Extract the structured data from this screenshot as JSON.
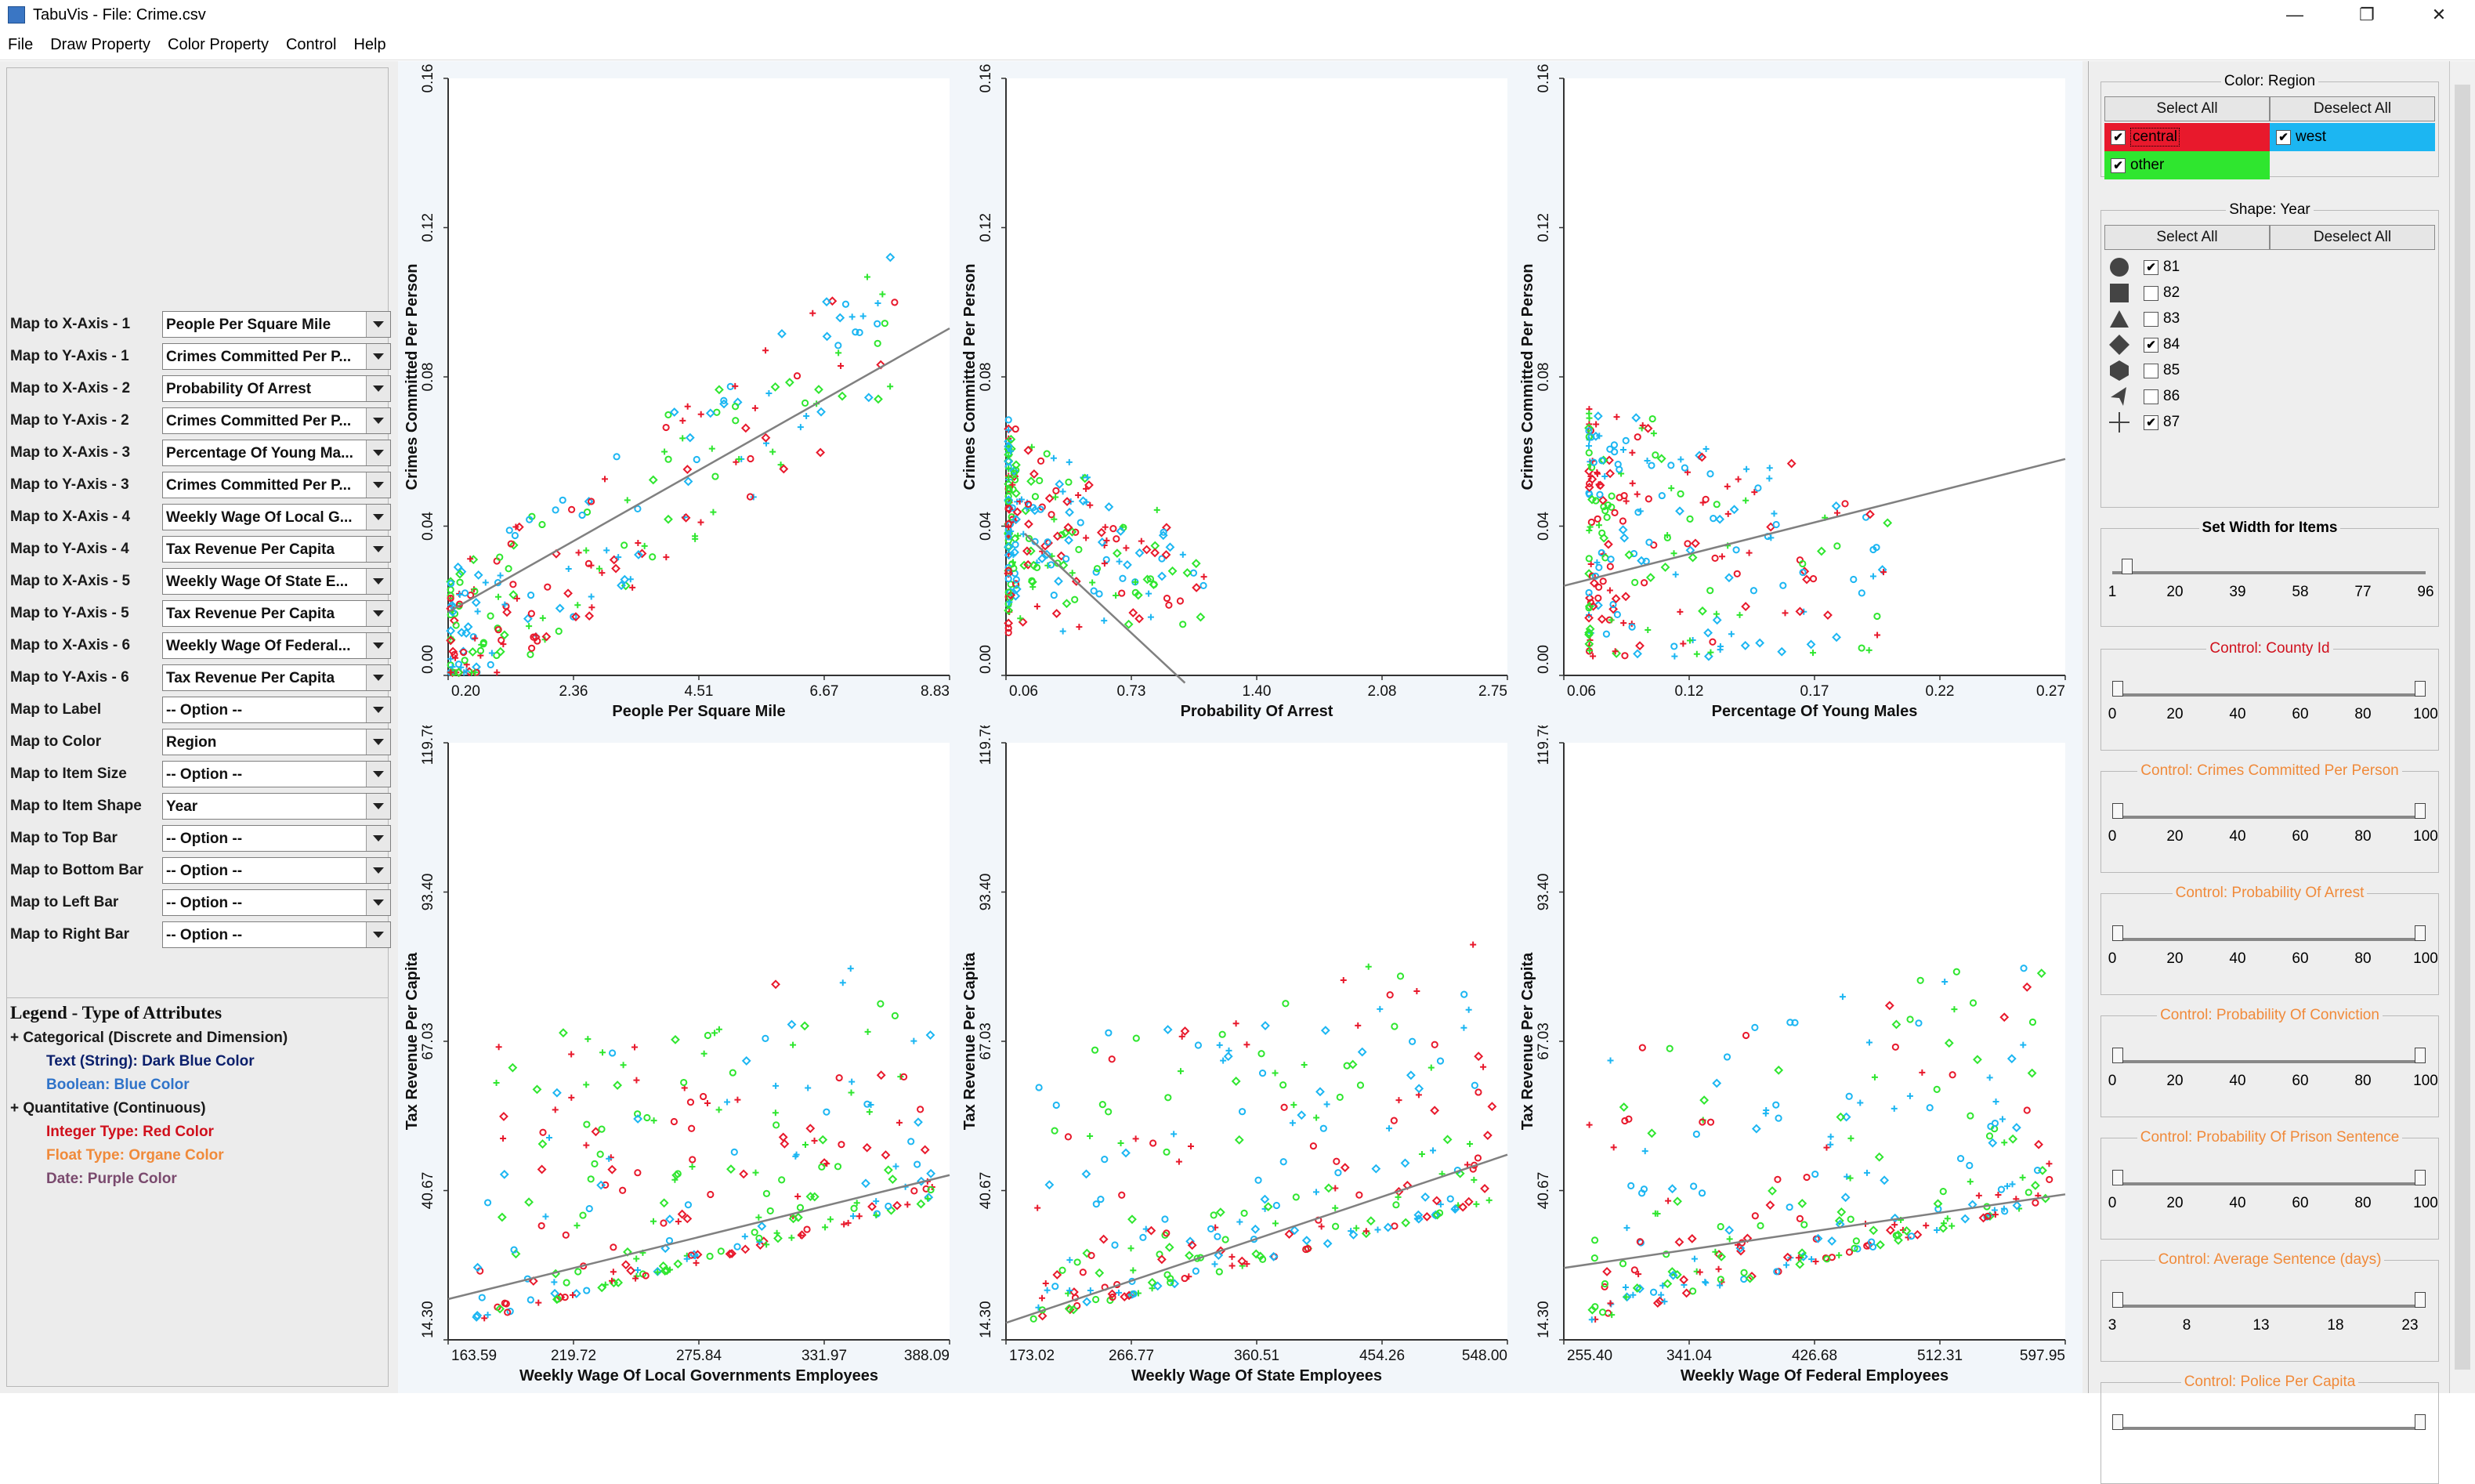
{
  "window": {
    "title": "TabuVis - File: Crime.csv",
    "min_glyph": "—",
    "max_glyph": "❐",
    "close_glyph": "✕"
  },
  "menu": [
    "File",
    "Draw Property",
    "Color Property",
    "Control",
    "Help"
  ],
  "mappings": [
    {
      "label": "Map to X-Axis - 1",
      "value": "People Per Square Mile"
    },
    {
      "label": "Map to Y-Axis - 1",
      "value": "Crimes Committed Per P..."
    },
    {
      "label": "Map to X-Axis - 2",
      "value": "Probability Of Arrest"
    },
    {
      "label": "Map to Y-Axis - 2",
      "value": "Crimes Committed Per P..."
    },
    {
      "label": "Map to X-Axis - 3",
      "value": "Percentage Of Young Ma..."
    },
    {
      "label": "Map to Y-Axis - 3",
      "value": "Crimes Committed Per P..."
    },
    {
      "label": "Map to X-Axis - 4",
      "value": "Weekly Wage Of Local G..."
    },
    {
      "label": "Map to Y-Axis - 4",
      "value": "Tax Revenue Per Capita"
    },
    {
      "label": "Map to X-Axis - 5",
      "value": "Weekly Wage Of State E..."
    },
    {
      "label": "Map to Y-Axis - 5",
      "value": "Tax Revenue Per Capita"
    },
    {
      "label": "Map to X-Axis - 6",
      "value": "Weekly Wage Of Federal..."
    },
    {
      "label": "Map to Y-Axis - 6",
      "value": "Tax Revenue Per Capita"
    },
    {
      "label": "Map to Label",
      "value": "-- Option --"
    },
    {
      "label": "Map to Color",
      "value": "Region"
    },
    {
      "label": "Map to Item Size",
      "value": "-- Option --"
    },
    {
      "label": "Map to Item Shape",
      "value": "Year"
    },
    {
      "label": "Map to Top Bar",
      "value": "-- Option --"
    },
    {
      "label": "Map to Bottom Bar",
      "value": "-- Option --"
    },
    {
      "label": "Map to Left Bar",
      "value": "-- Option --"
    },
    {
      "label": "Map to Right Bar",
      "value": "-- Option --"
    }
  ],
  "legend": {
    "title": "Legend - Type of Attributes",
    "lines": [
      {
        "text": "+ Categorical (Discrete and Dimension)",
        "color": "#1a1a1a",
        "indent": false
      },
      {
        "text": "Text (String): Dark Blue Color",
        "color": "#0b1f6b",
        "indent": true
      },
      {
        "text": "Boolean: Blue Color",
        "color": "#2f73c9",
        "indent": true
      },
      {
        "text": "+ Quantitative (Continuous)",
        "color": "#1a1a1a",
        "indent": false
      },
      {
        "text": "Integer Type: Red Color",
        "color": "#d0101c",
        "indent": true
      },
      {
        "text": "Float Type: Organe Color",
        "color": "#f08a3a",
        "indent": true
      },
      {
        "text": "Date: Purple Color",
        "color": "#7a4a6e",
        "indent": true
      }
    ]
  },
  "colors": {
    "central": "#e8192c",
    "west": "#1cb6f2",
    "other": "#2fe62f",
    "trend": "#808080"
  },
  "plots": [
    {
      "xlabel": "People Per Square Mile",
      "ylabel": "Crimes Committed Per Person",
      "xticks": [
        "0.20",
        "2.36",
        "4.51",
        "6.67",
        "8.83"
      ],
      "yticks": [
        "0.00",
        "0.04",
        "0.08",
        "0.12",
        "0.16"
      ],
      "xr": [
        0.2,
        8.83
      ],
      "yr": [
        0,
        0.16
      ],
      "trend": [
        [
          0.2,
          0.017
        ],
        [
          8.83,
          0.093
        ]
      ]
    },
    {
      "xlabel": "Probability Of Arrest",
      "ylabel": "Crimes Committed Per Person",
      "xticks": [
        "0.06",
        "0.73",
        "1.40",
        "2.08",
        "2.75"
      ],
      "yticks": [
        "0.00",
        "0.04",
        "0.08",
        "0.12",
        "0.16"
      ],
      "xr": [
        0.06,
        2.75
      ],
      "yr": [
        0,
        0.16
      ],
      "trend": [
        [
          0.16,
          0.038
        ],
        [
          1.02,
          -0.002
        ]
      ]
    },
    {
      "xlabel": "Percentage Of Young Males",
      "ylabel": "Crimes Committed Per Person",
      "xticks": [
        "0.06",
        "0.12",
        "0.17",
        "0.22",
        "0.27"
      ],
      "yticks": [
        "0.00",
        "0.04",
        "0.08",
        "0.12",
        "0.16"
      ],
      "xr": [
        0.06,
        0.27
      ],
      "yr": [
        0,
        0.16
      ],
      "trend": [
        [
          0.06,
          0.024
        ],
        [
          0.27,
          0.058
        ]
      ]
    },
    {
      "xlabel": "Weekly Wage Of Local Governments Employees",
      "ylabel": "Tax Revenue Per Capita",
      "xticks": [
        "163.59",
        "219.72",
        "275.84",
        "331.97",
        "388.09"
      ],
      "yticks": [
        "14.30",
        "40.67",
        "67.03",
        "93.40",
        "119.76"
      ],
      "xr": [
        163.59,
        388.09
      ],
      "yr": [
        14.3,
        119.76
      ],
      "trend": [
        [
          163.59,
          21.5
        ],
        [
          388.09,
          43.4
        ]
      ]
    },
    {
      "xlabel": "Weekly Wage Of State Employees",
      "ylabel": "Tax Revenue Per Capita",
      "xticks": [
        "173.02",
        "266.77",
        "360.51",
        "454.26",
        "548.00"
      ],
      "yticks": [
        "14.30",
        "40.67",
        "67.03",
        "93.40",
        "119.76"
      ],
      "xr": [
        173.02,
        548.0
      ],
      "yr": [
        14.3,
        119.76
      ],
      "trend": [
        [
          173.02,
          17.3
        ],
        [
          548.0,
          47.0
        ]
      ]
    },
    {
      "xlabel": "Weekly Wage Of Federal Employees",
      "ylabel": "Tax Revenue Per Capita",
      "xticks": [
        "255.40",
        "341.04",
        "426.68",
        "512.31",
        "597.95"
      ],
      "yticks": [
        "14.30",
        "40.67",
        "67.03",
        "93.40",
        "119.76"
      ],
      "xr": [
        255.4,
        597.95
      ],
      "yr": [
        14.3,
        119.76
      ],
      "trend": [
        [
          255.4,
          27.0
        ],
        [
          597.95,
          40.0
        ]
      ]
    }
  ],
  "color_group": {
    "title": "Color: Region",
    "select_all": "Select All",
    "deselect_all": "Deselect All",
    "items": [
      {
        "label": "central",
        "checked": true
      },
      {
        "label": "west",
        "checked": true
      },
      {
        "label": "other",
        "checked": true
      }
    ]
  },
  "shape_group": {
    "title": "Shape: Year",
    "select_all": "Select All",
    "deselect_all": "Deselect All",
    "items": [
      {
        "shape": "circle-icon",
        "label": "81",
        "checked": true
      },
      {
        "shape": "square-icon",
        "label": "82",
        "checked": false
      },
      {
        "shape": "triangle-icon",
        "label": "83",
        "checked": false
      },
      {
        "shape": "diamond-icon",
        "label": "84",
        "checked": true
      },
      {
        "shape": "hexagon-icon",
        "label": "85",
        "checked": false
      },
      {
        "shape": "arrow-icon",
        "label": "86",
        "checked": false
      },
      {
        "shape": "plus-icon",
        "label": "87",
        "checked": true
      }
    ]
  },
  "width_group": {
    "title": "Set Width for Items",
    "ticks": [
      "1",
      "20",
      "39",
      "58",
      "77",
      "96"
    ],
    "value": 4
  },
  "controls": [
    {
      "title": "Control: County Id",
      "color": "#d0101c",
      "ticks": [
        "0",
        "20",
        "40",
        "60",
        "80",
        "100"
      ]
    },
    {
      "title": "Control: Crimes Committed Per Person",
      "color": "#f08a3a",
      "ticks": [
        "0",
        "20",
        "40",
        "60",
        "80",
        "100"
      ]
    },
    {
      "title": "Control: Probability Of Arrest",
      "color": "#f08a3a",
      "ticks": [
        "0",
        "20",
        "40",
        "60",
        "80",
        "100"
      ]
    },
    {
      "title": "Control: Probability Of Conviction",
      "color": "#f08a3a",
      "ticks": [
        "0",
        "20",
        "40",
        "60",
        "80",
        "100"
      ]
    },
    {
      "title": "Control: Probability Of Prison Sentence",
      "color": "#f08a3a",
      "ticks": [
        "0",
        "20",
        "40",
        "60",
        "80",
        "100"
      ]
    },
    {
      "title": "Control: Average Sentence (days)",
      "color": "#f08a3a",
      "ticks": [
        "3",
        "8",
        "13",
        "18",
        "23"
      ]
    },
    {
      "title": "Control: Police Per Capita",
      "color": "#f08a3a",
      "ticks": []
    }
  ]
}
